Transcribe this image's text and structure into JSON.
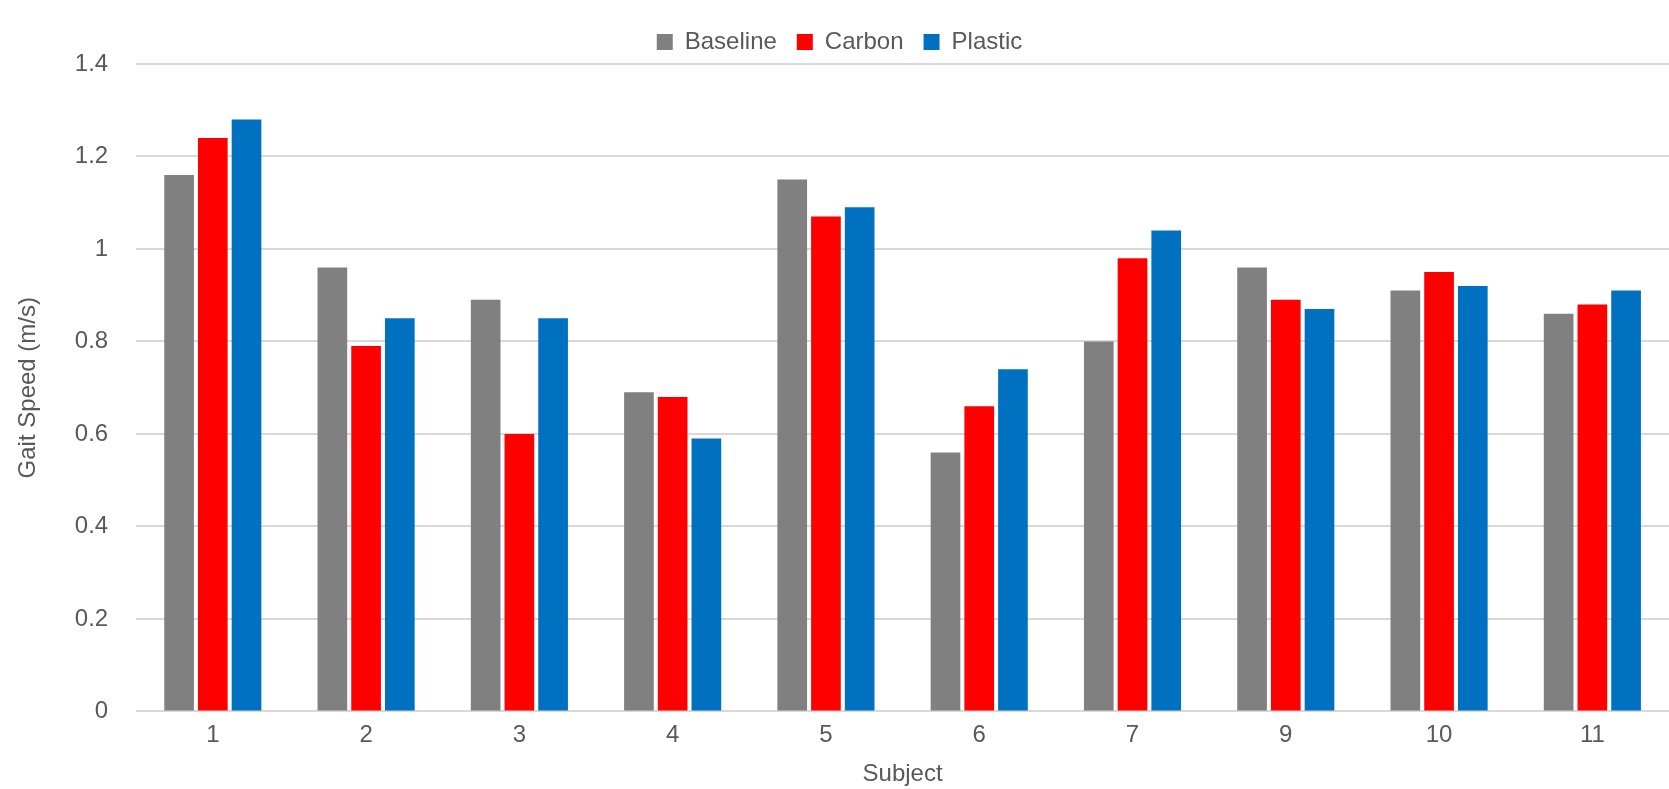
{
  "chart_data": {
    "type": "bar",
    "xlabel": "Subject",
    "ylabel": "Gait Speed (m/s)",
    "categories": [
      "1",
      "2",
      "3",
      "4",
      "5",
      "6",
      "7",
      "9",
      "10",
      "11"
    ],
    "series": [
      {
        "name": "Baseline",
        "color": "#808080",
        "values": [
          1.16,
          0.96,
          0.89,
          0.69,
          1.15,
          0.56,
          0.8,
          0.96,
          0.91,
          0.86
        ]
      },
      {
        "name": "Carbon",
        "color": "#ff0000",
        "values": [
          1.24,
          0.79,
          0.6,
          0.68,
          1.07,
          0.66,
          0.98,
          0.89,
          0.95,
          0.88
        ]
      },
      {
        "name": "Plastic",
        "color": "#0070c0",
        "values": [
          1.28,
          0.85,
          0.85,
          0.59,
          1.09,
          0.74,
          1.04,
          0.87,
          0.92,
          0.91
        ]
      }
    ],
    "ylim": [
      0,
      1.4
    ],
    "yticks": [
      0,
      0.2,
      0.4,
      0.6,
      0.8,
      1,
      1.2,
      1.4
    ],
    "grid": "y",
    "legend": "top"
  }
}
